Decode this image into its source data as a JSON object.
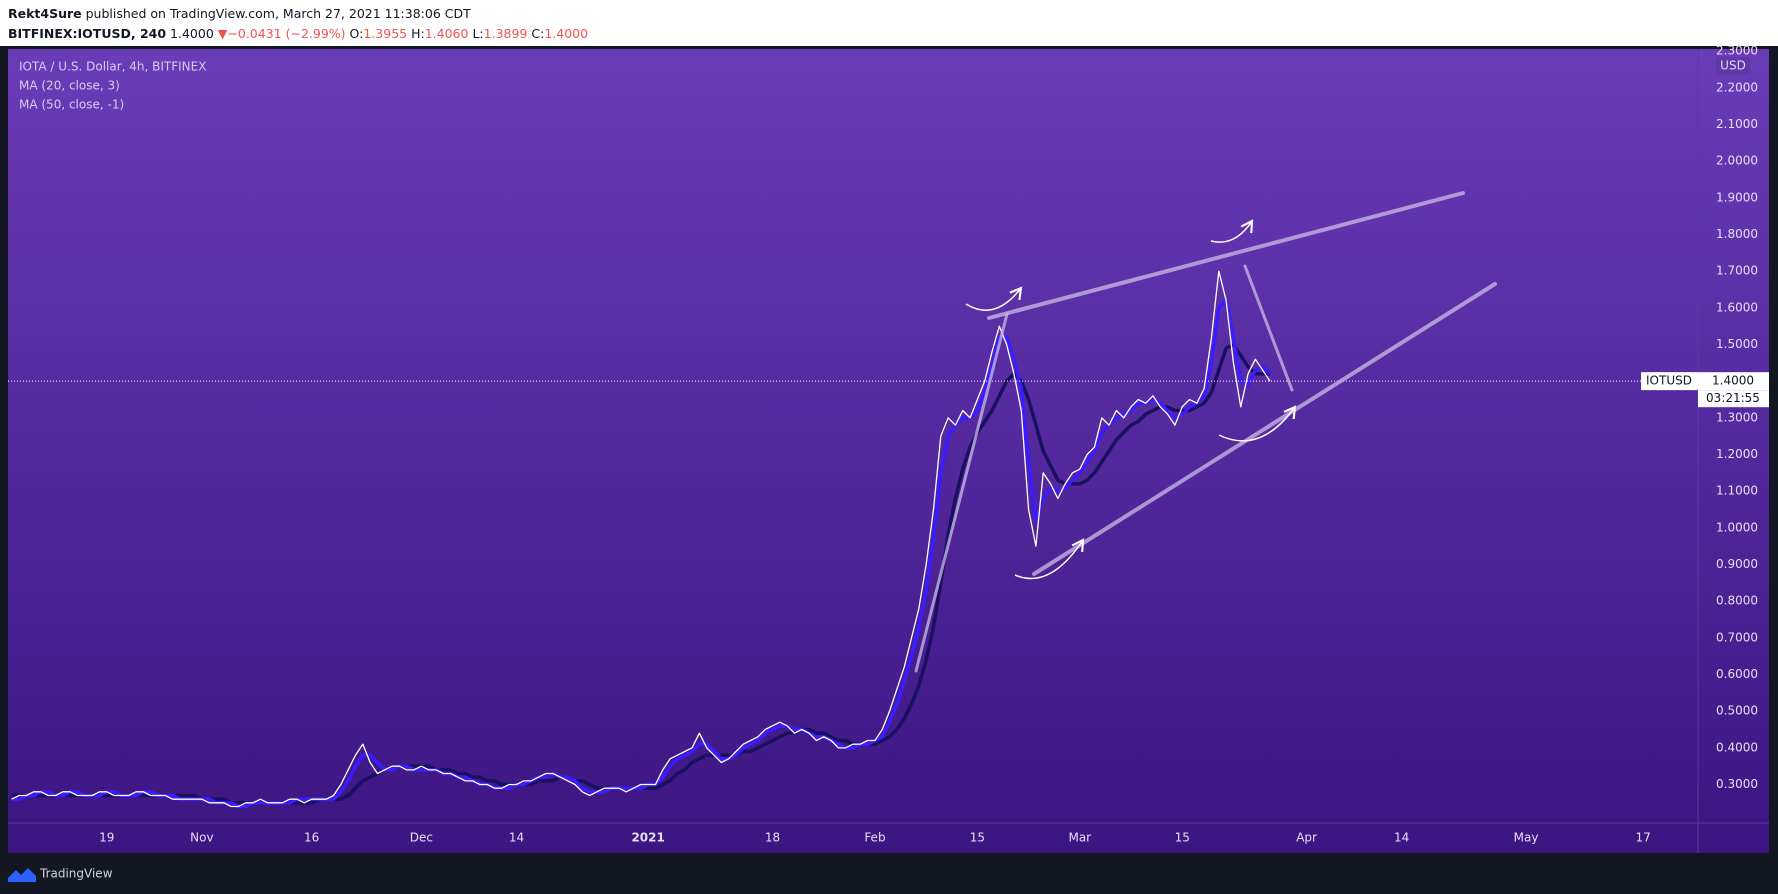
{
  "header": {
    "author": "Rekt4Sure",
    "published": "published on TradingView.com, March 27, 2021 11:38:06 CDT",
    "symbol": "BITFINEX:IOTUSD, 240",
    "last": "1.4000",
    "direction": "▼",
    "change": "−0.0431 (−2.99%)",
    "open_label": "O:",
    "open": "1.3955",
    "high_label": "H:",
    "high": "1.4060",
    "low_label": "L:",
    "low": "1.3899",
    "close_label": "C:",
    "close": "1.4000"
  },
  "chart_data": {
    "type": "line",
    "title": "IOTA / U.S. Dollar, 4h, BITFINEX",
    "currency": "USD",
    "categories": [
      null,
      null,
      null,
      null,
      null,
      null,
      null,
      null,
      null,
      null,
      null,
      null,
      null,
      "19",
      null,
      null,
      null,
      null,
      null,
      null,
      null,
      null,
      null,
      null,
      null,
      null,
      "Nov",
      null,
      null,
      null,
      null,
      null,
      null,
      null,
      null,
      null,
      null,
      null,
      null,
      null,
      null,
      "16",
      null,
      null,
      null,
      null,
      null,
      null,
      null,
      null,
      null,
      null,
      null,
      null,
      null,
      null,
      "Dec",
      null,
      null,
      null,
      null,
      null,
      null,
      null,
      null,
      null,
      null,
      null,
      null,
      "14",
      null,
      null,
      null,
      null,
      null,
      null,
      null,
      null,
      null,
      null,
      null,
      null,
      null,
      null,
      null,
      null,
      null,
      "2021",
      null,
      null,
      null,
      null,
      null,
      null,
      null,
      null,
      null,
      null,
      null,
      null,
      null,
      null,
      null,
      null,
      "18",
      null,
      null,
      null,
      null,
      null,
      null,
      null,
      null,
      null,
      null,
      null,
      null,
      null,
      "Feb",
      null,
      null,
      null,
      null,
      null,
      null,
      null,
      null,
      null,
      null,
      null,
      null,
      null,
      "15",
      null,
      null,
      null,
      null,
      null,
      null,
      null,
      null,
      null,
      null,
      null,
      null,
      null,
      "Mar",
      null,
      null,
      null,
      null,
      null,
      null,
      null,
      null,
      null,
      null,
      null,
      null,
      null,
      "15",
      null,
      null,
      null,
      null,
      null,
      null,
      null,
      null,
      null,
      null,
      null,
      null,
      null,
      null,
      null,
      null,
      "Apr",
      null,
      null,
      null,
      null,
      null,
      null,
      null,
      null,
      null,
      null,
      null,
      null,
      "14",
      null,
      null,
      null,
      null,
      null,
      null,
      null,
      null,
      null,
      null,
      null,
      null,
      null,
      null,
      null,
      null,
      "May",
      null,
      null,
      null,
      null,
      null,
      null,
      null,
      null,
      null,
      null,
      null,
      null,
      null,
      null,
      null,
      "17",
      null,
      null,
      null,
      null,
      null,
      null,
      null
    ],
    "series": [
      {
        "name": "IOTUSD",
        "color": "#ffffff",
        "values": [
          0.26,
          0.27,
          0.27,
          0.28,
          0.28,
          0.27,
          0.27,
          0.28,
          0.28,
          0.27,
          0.27,
          0.27,
          0.28,
          0.28,
          0.27,
          0.27,
          0.27,
          0.28,
          0.28,
          0.27,
          0.27,
          0.27,
          0.26,
          0.26,
          0.26,
          0.26,
          0.26,
          0.25,
          0.25,
          0.25,
          0.24,
          0.24,
          0.25,
          0.25,
          0.26,
          0.25,
          0.25,
          0.25,
          0.26,
          0.26,
          0.25,
          0.26,
          0.26,
          0.26,
          0.27,
          0.3,
          0.34,
          0.38,
          0.41,
          0.36,
          0.33,
          0.34,
          0.35,
          0.35,
          0.34,
          0.34,
          0.35,
          0.34,
          0.34,
          0.33,
          0.33,
          0.32,
          0.31,
          0.31,
          0.3,
          0.3,
          0.29,
          0.29,
          0.3,
          0.3,
          0.31,
          0.31,
          0.32,
          0.33,
          0.33,
          0.32,
          0.31,
          0.3,
          0.28,
          0.27,
          0.28,
          0.29,
          0.29,
          0.29,
          0.28,
          0.29,
          0.3,
          0.3,
          0.3,
          0.34,
          0.37,
          0.38,
          0.39,
          0.4,
          0.44,
          0.4,
          0.38,
          0.36,
          0.37,
          0.39,
          0.41,
          0.42,
          0.43,
          0.45,
          0.46,
          0.47,
          0.46,
          0.44,
          0.45,
          0.44,
          0.42,
          0.43,
          0.42,
          0.4,
          0.4,
          0.41,
          0.41,
          0.42,
          0.42,
          0.45,
          0.5,
          0.56,
          0.62,
          0.7,
          0.78,
          0.9,
          1.05,
          1.25,
          1.3,
          1.28,
          1.32,
          1.3,
          1.35,
          1.4,
          1.48,
          1.55,
          1.5,
          1.42,
          1.32,
          1.05,
          0.95,
          1.15,
          1.12,
          1.08,
          1.12,
          1.15,
          1.16,
          1.2,
          1.22,
          1.3,
          1.28,
          1.32,
          1.3,
          1.33,
          1.35,
          1.34,
          1.36,
          1.33,
          1.31,
          1.28,
          1.33,
          1.35,
          1.34,
          1.38,
          1.52,
          1.7,
          1.62,
          1.45,
          1.33,
          1.42,
          1.46,
          1.43,
          1.4,
          null,
          null,
          null,
          null,
          null,
          null,
          null,
          null,
          null,
          null,
          null,
          null,
          null,
          null,
          null,
          null,
          null,
          null,
          null,
          null,
          null,
          null,
          null,
          null,
          null,
          null,
          null,
          null,
          null,
          null,
          null,
          null,
          null,
          null,
          null,
          null,
          null,
          null,
          null,
          null,
          null,
          null,
          null,
          null,
          null,
          null,
          null,
          null,
          null,
          null,
          null,
          null,
          null,
          null,
          null,
          null,
          null,
          null
        ]
      },
      {
        "name": "MA (20, close, 3)",
        "color": "#3b1cff",
        "values": [
          0.26,
          0.26,
          0.27,
          0.27,
          0.28,
          0.28,
          0.27,
          0.27,
          0.28,
          0.28,
          0.27,
          0.27,
          0.27,
          0.28,
          0.28,
          0.27,
          0.27,
          0.27,
          0.28,
          0.28,
          0.27,
          0.27,
          0.27,
          0.26,
          0.26,
          0.26,
          0.26,
          0.26,
          0.25,
          0.25,
          0.25,
          0.24,
          0.24,
          0.25,
          0.25,
          0.25,
          0.25,
          0.25,
          0.25,
          0.26,
          0.26,
          0.26,
          0.26,
          0.26,
          0.26,
          0.28,
          0.31,
          0.35,
          0.38,
          0.38,
          0.36,
          0.34,
          0.34,
          0.35,
          0.35,
          0.34,
          0.34,
          0.34,
          0.34,
          0.33,
          0.33,
          0.32,
          0.32,
          0.31,
          0.3,
          0.3,
          0.29,
          0.29,
          0.29,
          0.3,
          0.3,
          0.31,
          0.32,
          0.32,
          0.33,
          0.32,
          0.32,
          0.31,
          0.29,
          0.28,
          0.28,
          0.28,
          0.29,
          0.29,
          0.29,
          0.29,
          0.29,
          0.3,
          0.3,
          0.32,
          0.35,
          0.37,
          0.38,
          0.39,
          0.41,
          0.41,
          0.39,
          0.37,
          0.37,
          0.38,
          0.4,
          0.41,
          0.42,
          0.44,
          0.45,
          0.46,
          0.46,
          0.45,
          0.45,
          0.44,
          0.43,
          0.43,
          0.42,
          0.41,
          0.4,
          0.4,
          0.41,
          0.41,
          0.42,
          0.43,
          0.47,
          0.52,
          0.58,
          0.65,
          0.73,
          0.83,
          0.97,
          1.15,
          1.25,
          1.28,
          1.3,
          1.3,
          1.32,
          1.37,
          1.44,
          1.52,
          1.52,
          1.46,
          1.38,
          1.18,
          1.02,
          1.08,
          1.11,
          1.1,
          1.11,
          1.13,
          1.15,
          1.18,
          1.21,
          1.26,
          1.28,
          1.3,
          1.31,
          1.32,
          1.34,
          1.34,
          1.35,
          1.34,
          1.32,
          1.3,
          1.31,
          1.33,
          1.34,
          1.36,
          1.45,
          1.6,
          1.62,
          1.52,
          1.4,
          1.39,
          1.43,
          1.44,
          1.42,
          null,
          null,
          null,
          null,
          null,
          null,
          null,
          null,
          null,
          null,
          null,
          null,
          null,
          null,
          null,
          null,
          null,
          null,
          null,
          null,
          null,
          null,
          null,
          null,
          null,
          null,
          null,
          null,
          null,
          null,
          null,
          null,
          null,
          null,
          null,
          null,
          null,
          null,
          null,
          null,
          null,
          null,
          null,
          null,
          null,
          null,
          null,
          null,
          null,
          null,
          null,
          null,
          null,
          null,
          null,
          null,
          null,
          null
        ]
      },
      {
        "name": "MA (50, close, -1)",
        "color": "#1a1060",
        "values": [
          0.27,
          0.27,
          0.27,
          0.27,
          0.27,
          0.27,
          0.27,
          0.27,
          0.27,
          0.27,
          0.27,
          0.27,
          0.27,
          0.27,
          0.27,
          0.27,
          0.27,
          0.27,
          0.27,
          0.27,
          0.27,
          0.27,
          0.27,
          0.27,
          0.27,
          0.27,
          0.26,
          0.26,
          0.26,
          0.26,
          0.25,
          0.25,
          0.25,
          0.25,
          0.25,
          0.25,
          0.25,
          0.25,
          0.25,
          0.25,
          0.25,
          0.25,
          0.26,
          0.26,
          0.26,
          0.26,
          0.27,
          0.29,
          0.31,
          0.32,
          0.33,
          0.34,
          0.34,
          0.35,
          0.35,
          0.35,
          0.35,
          0.35,
          0.34,
          0.34,
          0.34,
          0.33,
          0.33,
          0.32,
          0.32,
          0.31,
          0.31,
          0.3,
          0.3,
          0.3,
          0.3,
          0.3,
          0.31,
          0.31,
          0.31,
          0.32,
          0.32,
          0.31,
          0.31,
          0.3,
          0.29,
          0.29,
          0.29,
          0.29,
          0.29,
          0.29,
          0.29,
          0.29,
          0.29,
          0.3,
          0.31,
          0.33,
          0.34,
          0.36,
          0.37,
          0.38,
          0.38,
          0.38,
          0.38,
          0.38,
          0.39,
          0.39,
          0.4,
          0.41,
          0.42,
          0.43,
          0.44,
          0.44,
          0.45,
          0.45,
          0.44,
          0.44,
          0.43,
          0.42,
          0.42,
          0.41,
          0.41,
          0.41,
          0.41,
          0.42,
          0.43,
          0.45,
          0.48,
          0.52,
          0.57,
          0.64,
          0.73,
          0.85,
          0.98,
          1.08,
          1.16,
          1.22,
          1.26,
          1.29,
          1.32,
          1.36,
          1.4,
          1.42,
          1.4,
          1.35,
          1.28,
          1.21,
          1.17,
          1.13,
          1.12,
          1.12,
          1.12,
          1.13,
          1.15,
          1.18,
          1.21,
          1.24,
          1.26,
          1.28,
          1.29,
          1.31,
          1.32,
          1.33,
          1.33,
          1.32,
          1.32,
          1.32,
          1.33,
          1.34,
          1.37,
          1.43,
          1.49,
          1.5,
          1.47,
          1.44,
          1.42,
          1.42,
          1.42,
          null,
          null,
          null,
          null,
          null,
          null,
          null,
          null,
          null,
          null,
          null,
          null,
          null,
          null,
          null,
          null,
          null,
          null,
          null,
          null,
          null,
          null,
          null,
          null,
          null,
          null,
          null,
          null,
          null,
          null,
          null,
          null,
          null,
          null,
          null,
          null,
          null,
          null,
          null,
          null,
          null,
          null,
          null,
          null,
          null,
          null,
          null,
          null,
          null,
          null,
          null,
          null,
          null,
          null,
          null,
          null,
          null,
          null
        ]
      }
    ],
    "ylim": [
      0.195,
      2.306
    ],
    "yticks": [
      {
        "value": 0.3,
        "label": "0.3000"
      },
      {
        "value": 0.4,
        "label": "0.4000"
      },
      {
        "value": 0.5,
        "label": "0.5000"
      },
      {
        "value": 0.6,
        "label": "0.6000"
      },
      {
        "value": 0.7,
        "label": "0.7000"
      },
      {
        "value": 0.8,
        "label": "0.8000"
      },
      {
        "value": 0.9,
        "label": "0.9000"
      },
      {
        "value": 1.0,
        "label": "1.0000"
      },
      {
        "value": 1.1,
        "label": "1.1000"
      },
      {
        "value": 1.2,
        "label": "1.2000"
      },
      {
        "value": 1.3,
        "label": "1.3000"
      },
      {
        "value": 1.4,
        "label": "1.4000"
      },
      {
        "value": 1.5,
        "label": "1.5000"
      },
      {
        "value": 1.6,
        "label": "1.6000"
      },
      {
        "value": 1.7,
        "label": "1.7000"
      },
      {
        "value": 1.8,
        "label": "1.8000"
      },
      {
        "value": 1.9,
        "label": "1.9000"
      },
      {
        "value": 2.0,
        "label": "2.0000"
      },
      {
        "value": 2.1,
        "label": "2.1000"
      },
      {
        "value": 2.2,
        "label": "2.2000"
      },
      {
        "value": 2.3,
        "label": "2.3000"
      }
    ],
    "grid": false,
    "last_price": {
      "value": 1.4,
      "label": "1.4000"
    },
    "countdown": "03:21:55"
  },
  "footer": {
    "brand": "TradingView"
  }
}
